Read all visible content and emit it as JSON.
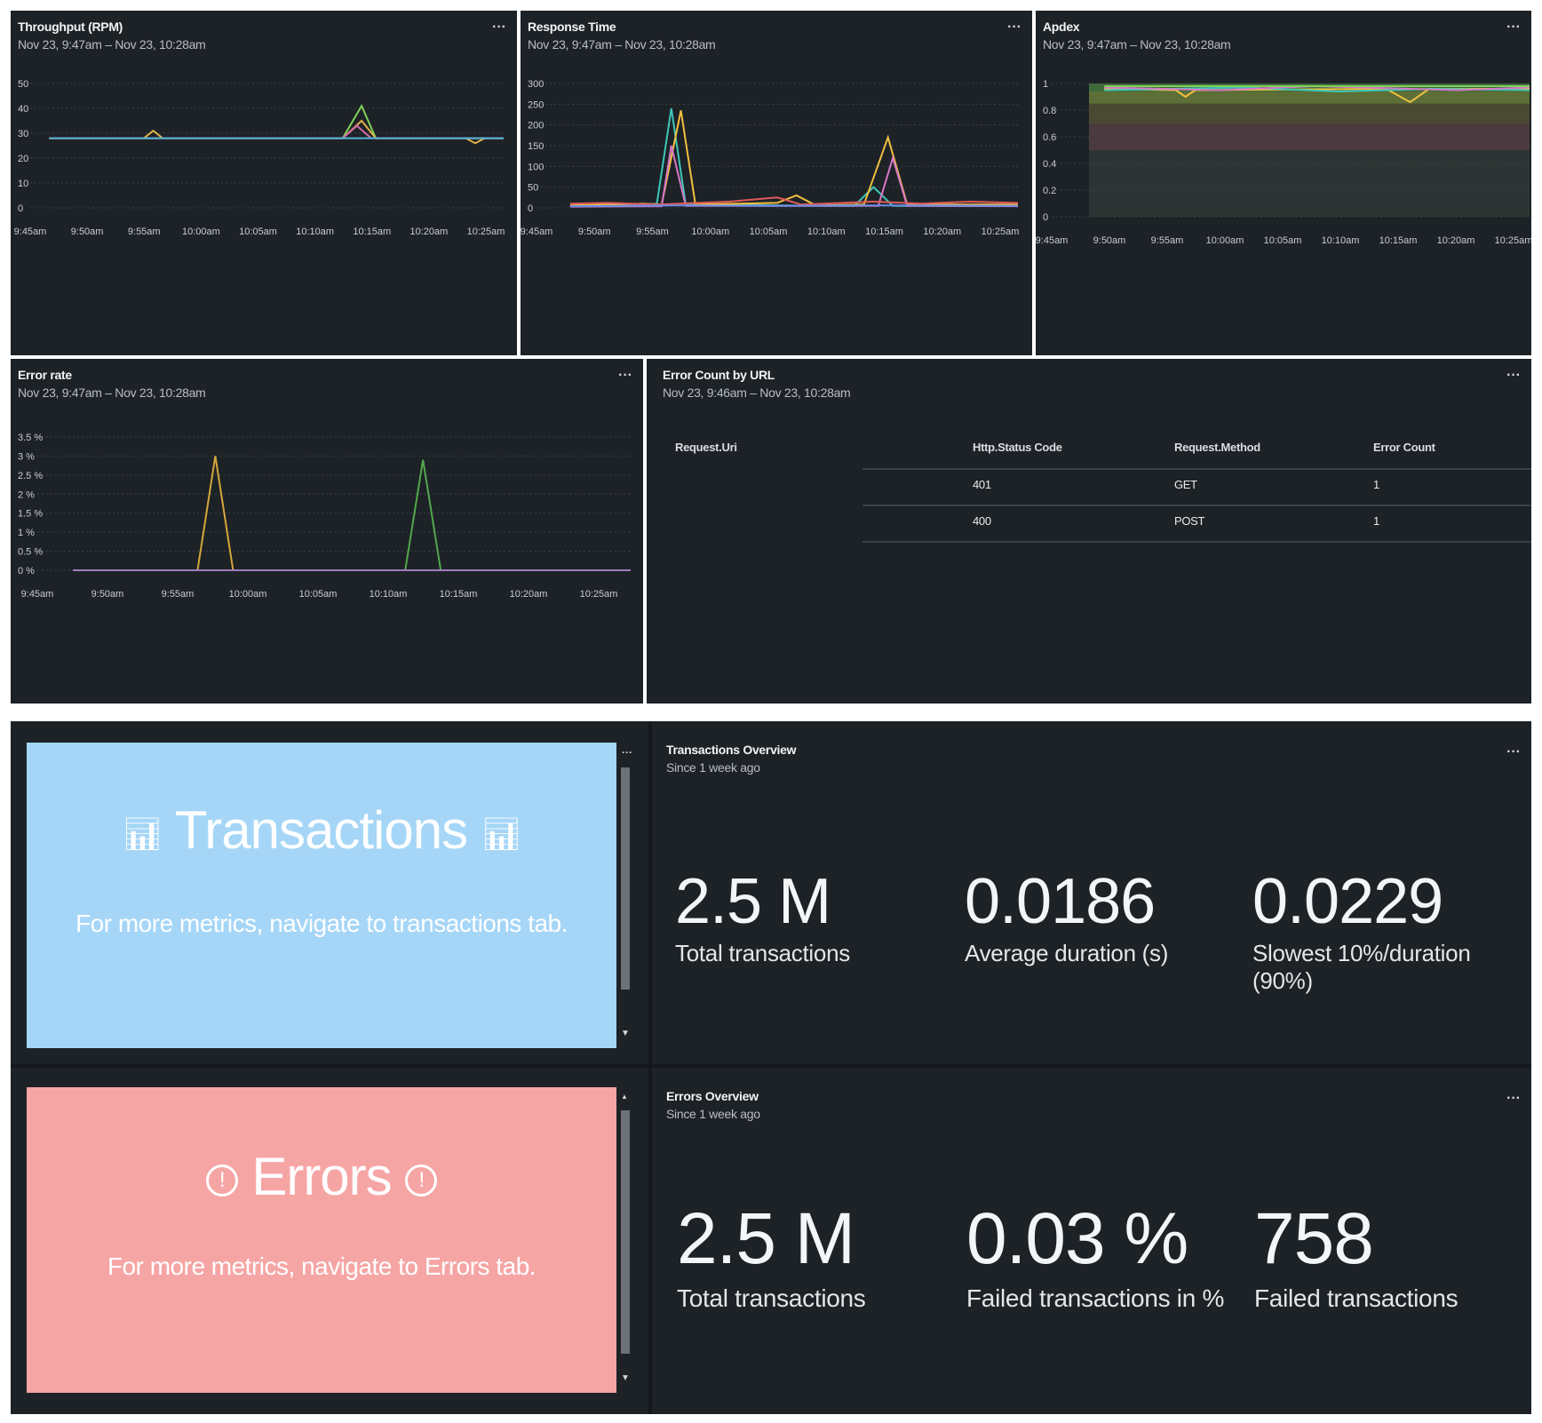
{
  "throughput": {
    "title": "Throughput (RPM)",
    "subtitle": "Nov 23, 9:47am – Nov 23, 10:28am",
    "menu": "···",
    "chart_data": {
      "type": "line",
      "x": [
        "9:45am",
        "9:50am",
        "9:55am",
        "10:00am",
        "10:05am",
        "10:10am",
        "10:15am",
        "10:20am",
        "10:25am"
      ],
      "xticks": [
        "9:45am",
        "9:50am",
        "9:55am",
        "10:00am",
        "10:05am",
        "10:10am",
        "10:15am",
        "10:20am",
        "10:25am"
      ],
      "yticks": [
        "0",
        "10",
        "20",
        "30",
        "40",
        "50"
      ],
      "ylim": [
        0,
        50
      ],
      "series": [
        {
          "color": "#7fd15a",
          "points": [
            [
              0.04,
              28
            ],
            [
              0.24,
              28
            ],
            [
              0.26,
              28
            ],
            [
              0.28,
              28
            ],
            [
              0.66,
              28
            ],
            [
              0.7,
              41
            ],
            [
              0.73,
              28
            ],
            [
              1.0,
              28
            ]
          ]
        },
        {
          "color": "#e0b14a",
          "points": [
            [
              0.04,
              28
            ],
            [
              0.24,
              28
            ],
            [
              0.26,
              31
            ],
            [
              0.28,
              28
            ],
            [
              0.66,
              28
            ],
            [
              0.7,
              35
            ],
            [
              0.73,
              28
            ],
            [
              0.92,
              28
            ],
            [
              0.94,
              26
            ],
            [
              0.96,
              28
            ],
            [
              1.0,
              28
            ]
          ]
        },
        {
          "color": "#d36aa7",
          "points": [
            [
              0.04,
              28
            ],
            [
              0.66,
              28
            ],
            [
              0.69,
              33
            ],
            [
              0.72,
              28
            ],
            [
              1.0,
              28
            ]
          ]
        },
        {
          "color": "#52b3d9",
          "points": [
            [
              0.04,
              28
            ],
            [
              1.0,
              28
            ]
          ]
        }
      ]
    }
  },
  "response_time": {
    "title": "Response Time",
    "subtitle": "Nov 23, 9:47am – Nov 23, 10:28am",
    "menu": "···",
    "chart_data": {
      "type": "line",
      "xticks": [
        "9:45am",
        "9:50am",
        "9:55am",
        "10:00am",
        "10:05am",
        "10:10am",
        "10:15am",
        "10:20am",
        "10:25am"
      ],
      "yticks": [
        "0",
        "50",
        "100",
        "150",
        "200",
        "250",
        "300"
      ],
      "ylim": [
        0,
        300
      ],
      "series": [
        {
          "color": "#3ec6b7",
          "points": [
            [
              0.07,
              5
            ],
            [
              0.2,
              5
            ],
            [
              0.25,
              10
            ],
            [
              0.28,
              240
            ],
            [
              0.31,
              8
            ],
            [
              0.6,
              5
            ],
            [
              0.66,
              5
            ],
            [
              0.7,
              50
            ],
            [
              0.74,
              5
            ],
            [
              1.0,
              5
            ]
          ]
        },
        {
          "color": "#f0c040",
          "points": [
            [
              0.07,
              6
            ],
            [
              0.22,
              10
            ],
            [
              0.26,
              8
            ],
            [
              0.3,
              235
            ],
            [
              0.33,
              8
            ],
            [
              0.5,
              12
            ],
            [
              0.54,
              30
            ],
            [
              0.58,
              6
            ],
            [
              0.68,
              8
            ],
            [
              0.73,
              170
            ],
            [
              0.77,
              8
            ],
            [
              1.0,
              8
            ]
          ]
        },
        {
          "color": "#d678c6",
          "points": [
            [
              0.07,
              3
            ],
            [
              0.26,
              4
            ],
            [
              0.28,
              150
            ],
            [
              0.31,
              5
            ],
            [
              0.71,
              5
            ],
            [
              0.74,
              120
            ],
            [
              0.77,
              5
            ],
            [
              1.0,
              4
            ]
          ]
        },
        {
          "color": "#e05a5a",
          "points": [
            [
              0.07,
              10
            ],
            [
              0.15,
              12
            ],
            [
              0.25,
              8
            ],
            [
              0.4,
              15
            ],
            [
              0.5,
              25
            ],
            [
              0.55,
              8
            ],
            [
              0.7,
              15
            ],
            [
              0.8,
              10
            ],
            [
              0.9,
              15
            ],
            [
              1.0,
              12
            ]
          ]
        },
        {
          "color": "#6a8de8",
          "points": [
            [
              0.07,
              4
            ],
            [
              0.3,
              6
            ],
            [
              0.5,
              5
            ],
            [
              0.7,
              6
            ],
            [
              1.0,
              5
            ]
          ]
        }
      ]
    }
  },
  "apdex": {
    "title": "Apdex",
    "subtitle": "Nov 23, 9:47am – Nov 23, 10:28am",
    "menu": "···",
    "chart_data": {
      "type": "line",
      "xticks": [
        "9:45am",
        "9:50am",
        "9:55am",
        "10:00am",
        "10:05am",
        "10:10am",
        "10:15am",
        "10:20am",
        "10:25am"
      ],
      "yticks": [
        "0",
        "0.2",
        "0.4",
        "0.6",
        "0.8",
        "1"
      ],
      "ylim": [
        0,
        1
      ],
      "bands": [
        {
          "from": 0.94,
          "to": 1.0,
          "color": "#3f6a3a"
        },
        {
          "from": 0.85,
          "to": 0.94,
          "color": "#5d6f36"
        },
        {
          "from": 0.7,
          "to": 0.85,
          "color": "#4a4a33"
        },
        {
          "from": 0.5,
          "to": 0.7,
          "color": "#4b3a3f"
        },
        {
          "from": 0.0,
          "to": 0.5,
          "color": "#2e3433"
        }
      ],
      "series": [
        {
          "color": "#f0c040",
          "points": [
            [
              0.11,
              0.96
            ],
            [
              0.26,
              0.95
            ],
            [
              0.28,
              0.9
            ],
            [
              0.3,
              0.95
            ],
            [
              0.7,
              0.96
            ],
            [
              0.75,
              0.86
            ],
            [
              0.79,
              0.96
            ],
            [
              1.0,
              0.96
            ]
          ]
        },
        {
          "color": "#3ec6b7",
          "points": [
            [
              0.11,
              0.95
            ],
            [
              0.4,
              0.97
            ],
            [
              0.6,
              0.94
            ],
            [
              0.8,
              0.96
            ],
            [
              1.0,
              0.95
            ]
          ]
        },
        {
          "color": "#d678c6",
          "points": [
            [
              0.11,
              0.97
            ],
            [
              0.35,
              0.95
            ],
            [
              0.55,
              0.98
            ],
            [
              0.85,
              0.95
            ],
            [
              1.0,
              0.97
            ]
          ]
        },
        {
          "color": "#7fd15a",
          "points": [
            [
              0.11,
              0.98
            ],
            [
              1.0,
              0.98
            ]
          ]
        }
      ]
    }
  },
  "error_rate": {
    "title": "Error rate",
    "subtitle": "Nov 23, 9:47am – Nov 23, 10:28am",
    "menu": "···",
    "chart_data": {
      "type": "line",
      "xticks": [
        "9:45am",
        "9:50am",
        "9:55am",
        "10:00am",
        "10:05am",
        "10:10am",
        "10:15am",
        "10:20am",
        "10:25am"
      ],
      "yticks": [
        "0 %",
        "0.5 %",
        "1 %",
        "1.5 %",
        "2 %",
        "2.5 %",
        "3 %",
        "3.5 %"
      ],
      "ylim": [
        0,
        3.5
      ],
      "series": [
        {
          "color": "#d6a73a",
          "points": [
            [
              0.06,
              0
            ],
            [
              0.27,
              0
            ],
            [
              0.3,
              3.0
            ],
            [
              0.33,
              0
            ],
            [
              1.0,
              0
            ]
          ]
        },
        {
          "color": "#52a84a",
          "points": [
            [
              0.06,
              0
            ],
            [
              0.62,
              0
            ],
            [
              0.65,
              2.9
            ],
            [
              0.68,
              0
            ],
            [
              1.0,
              0
            ]
          ]
        },
        {
          "color": "#a07ac0",
          "points": [
            [
              0.06,
              0
            ],
            [
              1.0,
              0
            ]
          ]
        }
      ]
    }
  },
  "error_count": {
    "title": "Error Count by URL",
    "subtitle": "Nov 23, 9:46am – Nov 23, 10:28am",
    "menu": "···",
    "columns": [
      "Request.Uri",
      "Http.Status Code",
      "Request.Method",
      "Error Count"
    ],
    "rows": [
      {
        "uri": "",
        "status": "401",
        "method": "GET",
        "count": "1"
      },
      {
        "uri": "",
        "status": "400",
        "method": "POST",
        "count": "1"
      }
    ]
  },
  "transactions_cta": {
    "title": "Transactions",
    "subtitle": "For more metrics, navigate to transactions tab.",
    "menu": "···",
    "bg": "#a5d6f7"
  },
  "errors_cta": {
    "title": "Errors",
    "subtitle": "For more metrics, navigate to Errors tab.",
    "bg": "#f6a5a5"
  },
  "transactions_overview": {
    "title": "Transactions Overview",
    "subtitle": "Since 1 week ago",
    "menu": "···",
    "stats": [
      {
        "value": "2.5 M",
        "label": "Total transactions"
      },
      {
        "value": "0.0186",
        "label": "Average duration (s)"
      },
      {
        "value": "0.0229",
        "label": "Slowest 10%/duration (90%)"
      }
    ]
  },
  "errors_overview": {
    "title": "Errors Overview",
    "subtitle": "Since 1 week ago",
    "menu": "···",
    "stats": [
      {
        "value": "2.5 M",
        "label": "Total transactions"
      },
      {
        "value": "0.03 %",
        "label": "Failed transactions in %"
      },
      {
        "value": "758",
        "label": "Failed transactions"
      }
    ]
  },
  "icons": {
    "transactions": "bar-chart-icon",
    "errors": "exclamation-circle-icon"
  }
}
